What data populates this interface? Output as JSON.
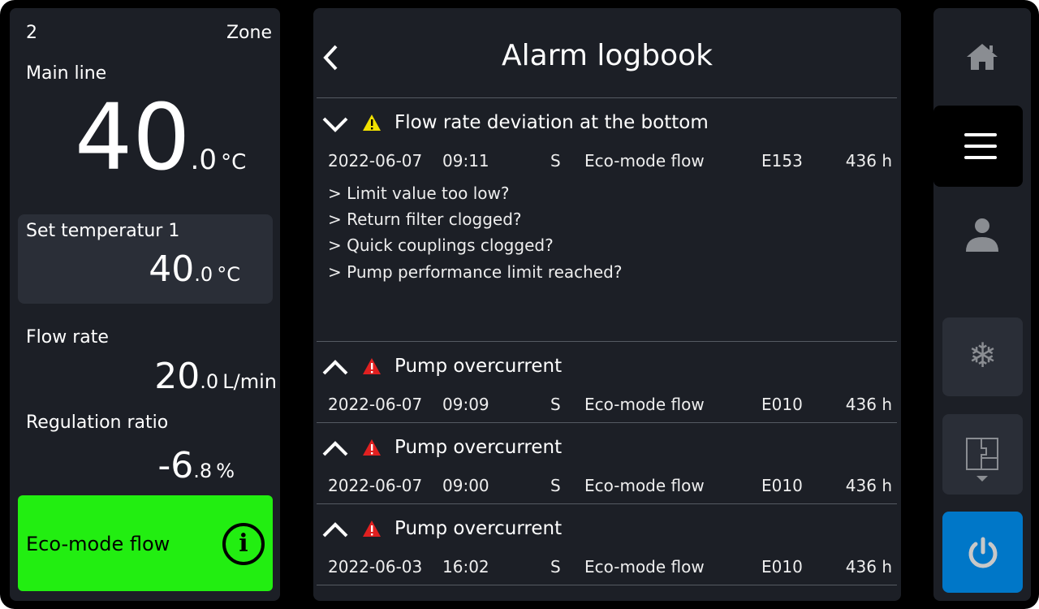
{
  "left": {
    "zone_number": "2",
    "zone_label": "Zone",
    "main_line": {
      "label": "Main line",
      "int": "40",
      "dec": ".0",
      "unit": "°C"
    },
    "set_temp": {
      "label": "Set temperatur 1",
      "int": "40",
      "dec": ".0",
      "unit": "°C"
    },
    "flow_rate": {
      "label": "Flow rate",
      "int": "20",
      "dec": ".0",
      "unit": "L/min"
    },
    "regulation": {
      "label": "Regulation ratio",
      "int": "-6",
      "dec": ".8",
      "unit": "%"
    },
    "mode": {
      "label": "Eco-mode flow",
      "info": "i",
      "color": "#22ee11"
    }
  },
  "main": {
    "title": "Alarm logbook",
    "alarms": [
      {
        "title": "Flow rate deviation at the bottom",
        "severity": "warning",
        "expanded": true,
        "date": "2022-06-07",
        "time": "09:11",
        "type": "S",
        "mode": "Eco-mode flow",
        "code": "E153",
        "hours": "436 h",
        "hints": [
          "> Limit value too low?",
          "> Return filter clogged?",
          "> Quick couplings clogged?",
          "> Pump performance limit reached?"
        ]
      },
      {
        "title": "Pump overcurrent",
        "severity": "error",
        "expanded": false,
        "date": "2022-06-07",
        "time": "09:09",
        "type": "S",
        "mode": "Eco-mode flow",
        "code": "E010",
        "hours": "436 h"
      },
      {
        "title": "Pump overcurrent",
        "severity": "error",
        "expanded": false,
        "date": "2022-06-07",
        "time": "09:00",
        "type": "S",
        "mode": "Eco-mode flow",
        "code": "E010",
        "hours": "436 h"
      },
      {
        "title": "Pump overcurrent",
        "severity": "error",
        "expanded": false,
        "date": "2022-06-03",
        "time": "16:02",
        "type": "S",
        "mode": "Eco-mode flow",
        "code": "E010",
        "hours": "436 h"
      }
    ]
  },
  "nav": {
    "items": [
      "home-icon",
      "menu-icon",
      "user-icon",
      "snowflake-icon",
      "floorplan-icon",
      "power-icon"
    ],
    "active": "menu-icon",
    "power_color": "#0077c8",
    "warning_color": "#f0e000",
    "error_color": "#e02020"
  }
}
